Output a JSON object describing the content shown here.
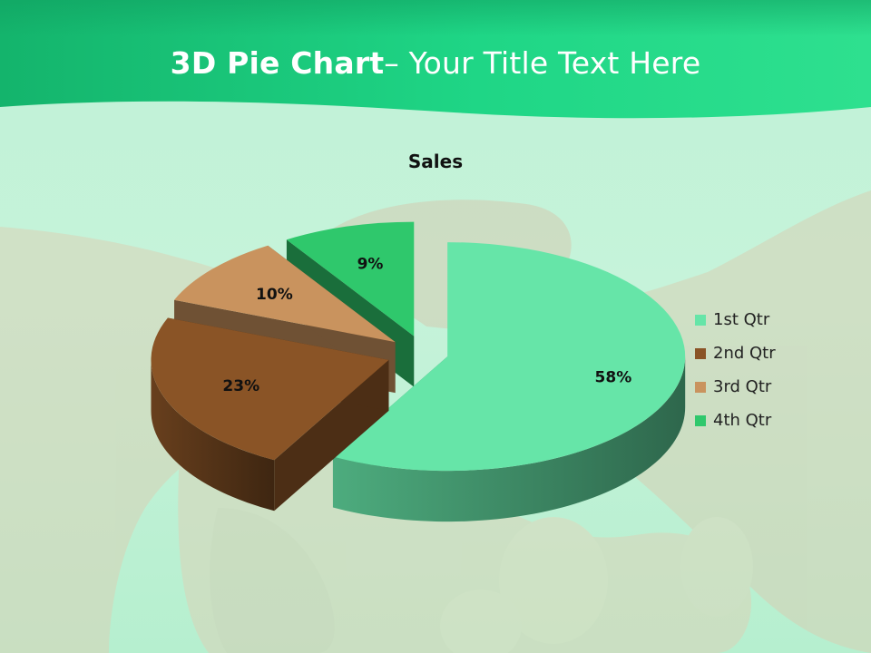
{
  "slide": {
    "title_bold": "3D Pie Chart",
    "title_rest": "– Your Title Text Here"
  },
  "colors": {
    "header_green": "#1fd686",
    "header_dark": "#14b06a",
    "background": "#c2f2d8"
  },
  "chart_data": {
    "type": "pie",
    "style": "3d-exploded",
    "title": "Sales",
    "legend_position": "right",
    "categories": [
      "1st Qtr",
      "2nd Qtr",
      "3rd Qtr",
      "4th Qtr"
    ],
    "values": [
      58,
      23,
      10,
      9
    ],
    "data_labels": [
      "58%",
      "23%",
      "10%",
      "9%"
    ],
    "colors": [
      "#66e5a8",
      "#8a5426",
      "#c9935e",
      "#2fc86c"
    ]
  }
}
